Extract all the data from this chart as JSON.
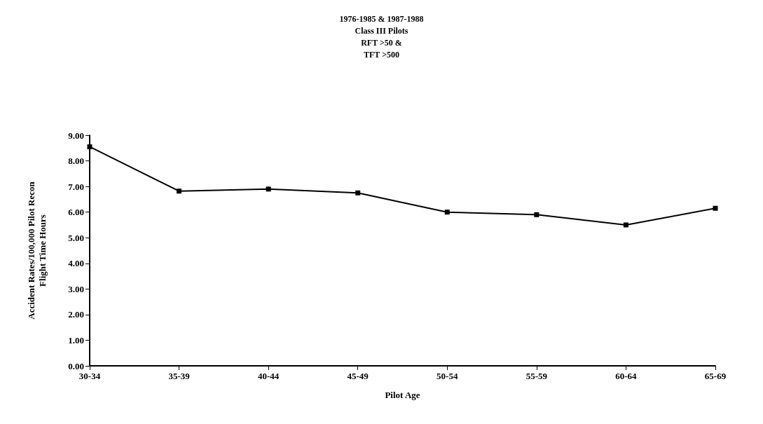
{
  "chart_data": {
    "type": "line",
    "title": "1976-1985 & 1987-1988\nClass III Pilots\nRFT >50 &\nTFT >500",
    "xlabel": "Pilot Age",
    "ylabel": "Accident Rates/100,000 Pilot Recon\nFlight Time Hours",
    "categories": [
      "30-34",
      "35-39",
      "40-44",
      "45-49",
      "50-54",
      "55-59",
      "60-64",
      "65-69"
    ],
    "series": [
      {
        "color": "#000000",
        "values": [
          8.55,
          6.82,
          6.9,
          6.75,
          6.0,
          5.9,
          5.5,
          6.15
        ]
      }
    ],
    "ylim": [
      0,
      9
    ],
    "yticks": [
      {
        "value": 0,
        "label": "0.00"
      },
      {
        "value": 1,
        "label": "1.00"
      },
      {
        "value": 2,
        "label": "2.00"
      },
      {
        "value": 3,
        "label": "3.00"
      },
      {
        "value": 4,
        "label": "4.00"
      },
      {
        "value": 5,
        "label": "5.00"
      },
      {
        "value": 6,
        "label": "6.00"
      },
      {
        "value": 7,
        "label": "7.00"
      },
      {
        "value": 8,
        "label": "8.00"
      },
      {
        "value": 9,
        "label": "9.00"
      }
    ],
    "marker": "square",
    "grid": false
  }
}
